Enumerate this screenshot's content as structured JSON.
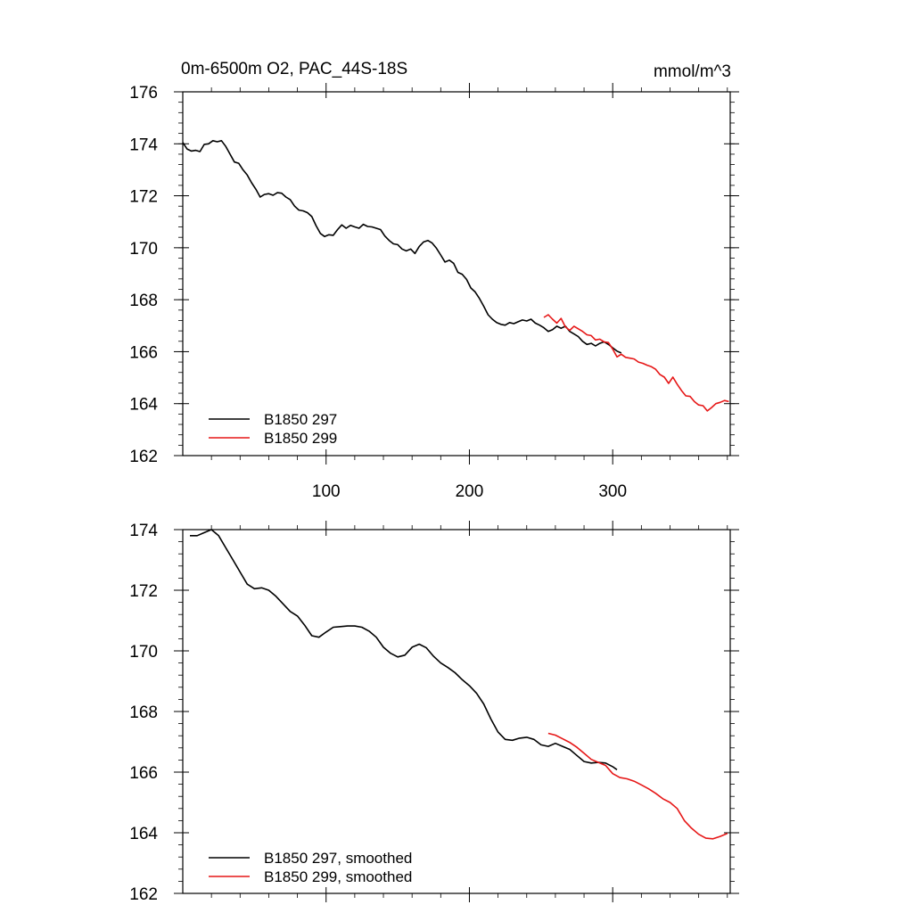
{
  "figure": {
    "title_left": "0m-6500m O2, PAC_44S-18S",
    "title_right": "mmol/m^3"
  },
  "chart_data": [
    {
      "type": "line",
      "name": "top-panel",
      "xlim": [
        0,
        382
      ],
      "ylim": [
        162,
        176
      ],
      "xticks": [
        100,
        200,
        300
      ],
      "xtick_labels": [
        "100",
        "200",
        "300"
      ],
      "yticks": [
        162,
        164,
        166,
        168,
        170,
        172,
        174,
        176
      ],
      "ytick_labels": [
        "162",
        "164",
        "166",
        "168",
        "170",
        "172",
        "174",
        "176"
      ],
      "legend": {
        "position": "bottom-left",
        "entries": [
          "B1850 297",
          "B1850 299"
        ]
      },
      "series": [
        {
          "name": "B1850 297",
          "color": "#000000",
          "x": [
            0,
            3,
            6,
            9,
            12,
            15,
            18,
            21,
            24,
            27,
            30,
            33,
            36,
            39,
            42,
            45,
            48,
            51,
            54,
            57,
            60,
            63,
            66,
            69,
            72,
            75,
            78,
            81,
            84,
            87,
            90,
            93,
            96,
            99,
            102,
            105,
            108,
            111,
            114,
            117,
            120,
            123,
            126,
            129,
            132,
            135,
            138,
            141,
            144,
            147,
            150,
            153,
            156,
            159,
            162,
            165,
            168,
            171,
            174,
            177,
            180,
            183,
            186,
            189,
            192,
            195,
            198,
            201,
            204,
            207,
            210,
            213,
            216,
            219,
            222,
            225,
            228,
            231,
            234,
            237,
            240,
            243,
            246,
            249,
            252,
            255,
            258,
            261,
            264,
            267,
            270,
            273,
            276,
            279,
            282,
            285,
            288,
            291,
            294,
            297,
            300,
            303,
            306
          ],
          "values": [
            174.05,
            173.8,
            173.72,
            173.75,
            173.7,
            173.98,
            174.0,
            174.12,
            174.08,
            174.12,
            173.9,
            173.6,
            173.3,
            173.25,
            173.0,
            172.8,
            172.5,
            172.25,
            171.95,
            172.05,
            172.08,
            172.02,
            172.12,
            172.1,
            171.95,
            171.85,
            171.6,
            171.45,
            171.42,
            171.35,
            171.2,
            170.85,
            170.55,
            170.43,
            170.5,
            170.48,
            170.7,
            170.88,
            170.75,
            170.86,
            170.8,
            170.75,
            170.9,
            170.82,
            170.8,
            170.75,
            170.7,
            170.45,
            170.28,
            170.15,
            170.12,
            169.95,
            169.88,
            169.95,
            169.78,
            170.05,
            170.22,
            170.28,
            170.18,
            169.98,
            169.72,
            169.45,
            169.52,
            169.4,
            169.05,
            168.98,
            168.78,
            168.45,
            168.3,
            168.05,
            167.75,
            167.42,
            167.25,
            167.12,
            167.05,
            167.02,
            167.12,
            167.08,
            167.15,
            167.22,
            167.18,
            167.25,
            167.1,
            167.02,
            166.92,
            166.78,
            166.85,
            166.98,
            166.9,
            166.98,
            166.78,
            166.68,
            166.58,
            166.4,
            166.28,
            166.32,
            166.22,
            166.32,
            166.38,
            166.28,
            166.15,
            166.02,
            165.95
          ]
        },
        {
          "name": "B1850 299",
          "color": "#e61717",
          "x": [
            252,
            255,
            258,
            261,
            264,
            267,
            270,
            273,
            276,
            279,
            282,
            285,
            288,
            291,
            294,
            297,
            300,
            303,
            306,
            309,
            312,
            315,
            318,
            321,
            324,
            327,
            330,
            333,
            336,
            339,
            342,
            345,
            348,
            351,
            354,
            357,
            360,
            363,
            366,
            369,
            372,
            375,
            378,
            381
          ],
          "values": [
            167.32,
            167.42,
            167.25,
            167.1,
            167.28,
            166.95,
            166.82,
            166.98,
            166.88,
            166.78,
            166.65,
            166.62,
            166.45,
            166.48,
            166.38,
            166.35,
            166.1,
            165.8,
            165.9,
            165.78,
            165.75,
            165.72,
            165.6,
            165.55,
            165.48,
            165.42,
            165.32,
            165.12,
            165.02,
            164.78,
            165.02,
            164.75,
            164.5,
            164.3,
            164.28,
            164.08,
            163.95,
            163.92,
            163.72,
            163.85,
            164.0,
            164.05,
            164.12,
            164.08
          ]
        }
      ]
    },
    {
      "type": "line",
      "name": "bottom-panel",
      "xlim": [
        0,
        382
      ],
      "ylim": [
        162,
        174
      ],
      "xticks": [
        100,
        200,
        300
      ],
      "yticks": [
        162,
        164,
        166,
        168,
        170,
        172,
        174
      ],
      "ytick_labels": [
        "162",
        "164",
        "166",
        "168",
        "170",
        "172",
        "174"
      ],
      "legend": {
        "position": "bottom-left",
        "entries": [
          "B1850 297, smoothed",
          "B1850 299, smoothed"
        ]
      },
      "series": [
        {
          "name": "B1850 297, smoothed",
          "color": "#000000",
          "x": [
            5,
            10,
            15,
            20,
            25,
            30,
            35,
            40,
            45,
            50,
            55,
            60,
            65,
            70,
            75,
            80,
            85,
            90,
            95,
            100,
            105,
            110,
            115,
            120,
            125,
            130,
            135,
            140,
            145,
            150,
            155,
            160,
            165,
            170,
            175,
            180,
            185,
            190,
            195,
            200,
            205,
            210,
            215,
            220,
            225,
            230,
            235,
            240,
            245,
            250,
            255,
            260,
            265,
            270,
            275,
            280,
            285,
            290,
            295,
            300,
            303
          ],
          "values": [
            173.8,
            173.8,
            173.9,
            174.0,
            173.8,
            173.4,
            173.0,
            172.6,
            172.2,
            172.05,
            172.08,
            172.0,
            171.8,
            171.55,
            171.3,
            171.15,
            170.85,
            170.5,
            170.45,
            170.62,
            170.78,
            170.8,
            170.82,
            170.82,
            170.78,
            170.65,
            170.45,
            170.12,
            169.92,
            169.8,
            169.86,
            170.12,
            170.22,
            170.1,
            169.82,
            169.6,
            169.45,
            169.28,
            169.05,
            168.85,
            168.6,
            168.25,
            167.75,
            167.32,
            167.08,
            167.05,
            167.12,
            167.15,
            167.08,
            166.9,
            166.85,
            166.95,
            166.85,
            166.75,
            166.55,
            166.35,
            166.3,
            166.32,
            166.3,
            166.18,
            166.08
          ]
        },
        {
          "name": "B1850 299, smoothed",
          "color": "#e61717",
          "x": [
            255,
            260,
            265,
            270,
            275,
            280,
            285,
            290,
            295,
            300,
            305,
            310,
            315,
            320,
            325,
            330,
            335,
            340,
            345,
            350,
            355,
            360,
            365,
            370,
            375,
            380
          ],
          "values": [
            167.28,
            167.22,
            167.1,
            166.98,
            166.82,
            166.62,
            166.42,
            166.32,
            166.22,
            165.95,
            165.82,
            165.78,
            165.7,
            165.58,
            165.45,
            165.3,
            165.12,
            165.0,
            164.8,
            164.4,
            164.15,
            163.95,
            163.82,
            163.8,
            163.88,
            163.98
          ]
        }
      ]
    }
  ]
}
